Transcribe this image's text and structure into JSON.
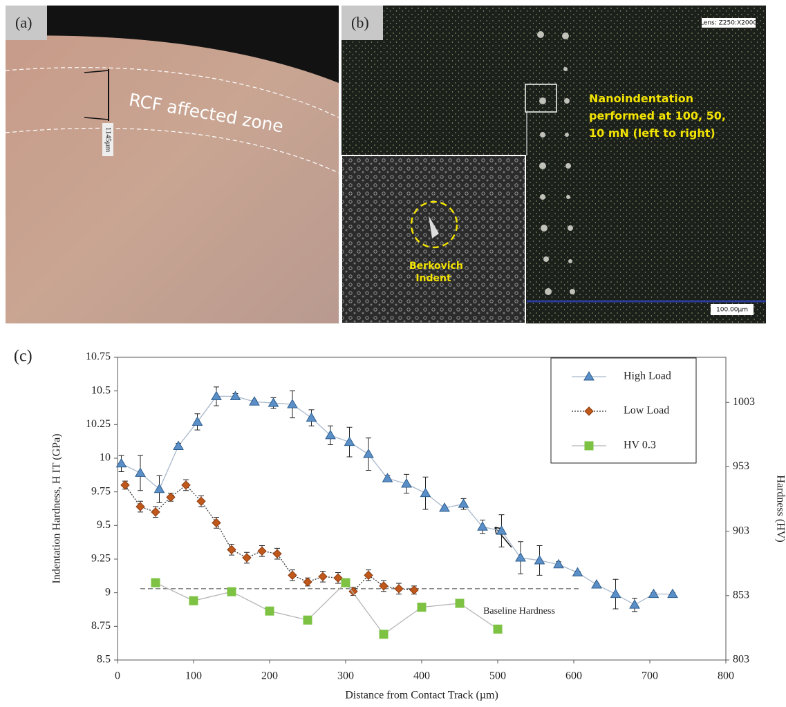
{
  "panels": {
    "a": {
      "label": "(a)",
      "annotation": "RCF affected zone",
      "scale_label": "1145µm"
    },
    "b": {
      "label": "(b)",
      "lens": "Lens: Z250:X2000",
      "annotation": "Nanoindentation performed at 100, 50, 10 mN (left to right)",
      "inset_label": "Berkovich Indent",
      "scale_bar": "100.00µm"
    },
    "c": {
      "label": "(c)"
    }
  },
  "chart_data": {
    "type": "line",
    "x_label": "Distance from Contact Track (µm)",
    "y_label": "Indentation Hardness, H IT (GPa)",
    "y2_label": "Hardness (HV)",
    "xlim": [
      0,
      800
    ],
    "xticks": [
      0,
      100,
      200,
      300,
      400,
      500,
      600,
      700,
      800
    ],
    "ylim": [
      8.5,
      10.75
    ],
    "yticks": [
      8.5,
      8.75,
      9,
      9.25,
      9.5,
      9.75,
      10,
      10.25,
      10.5,
      10.75
    ],
    "y2lim": [
      803,
      1038
    ],
    "y2ticks": [
      803,
      853,
      903,
      953,
      1003
    ],
    "legend": "top-right",
    "series": [
      {
        "name": "High Load",
        "color": "#5b8fc7",
        "edge": "#2e5e8e",
        "line_color": "#a9b8cc",
        "line_style": "solid",
        "marker": "triangle",
        "x": [
          5,
          30,
          55,
          80,
          105,
          130,
          155,
          180,
          205,
          230,
          255,
          280,
          305,
          330,
          355,
          380,
          405,
          430,
          455,
          480,
          505,
          530,
          555,
          580,
          605,
          630,
          655,
          680,
          705,
          730
        ],
        "values": [
          9.96,
          9.89,
          9.77,
          10.09,
          10.27,
          10.46,
          10.46,
          10.42,
          10.41,
          10.4,
          10.3,
          10.17,
          10.12,
          10.03,
          9.85,
          9.81,
          9.74,
          9.63,
          9.66,
          9.49,
          9.46,
          9.26,
          9.24,
          9.21,
          9.15,
          9.06,
          8.99,
          8.91,
          8.99,
          8.99
        ],
        "errors": [
          0.06,
          0.13,
          0.1,
          0.02,
          0.06,
          0.07,
          0.02,
          0.01,
          0.04,
          0.1,
          0.06,
          0.07,
          0.11,
          0.12,
          0.02,
          0.07,
          0.12,
          0.01,
          0.04,
          0.05,
          0.12,
          0.12,
          0.11,
          0.02,
          0.01,
          0.01,
          0.11,
          0.05,
          0.01,
          0.01
        ]
      },
      {
        "name": "Low Load",
        "color": "#c0581b",
        "edge": "#8a3a10",
        "line_color": "#333333",
        "line_style": "dotted",
        "marker": "diamond",
        "x": [
          10,
          30,
          50,
          70,
          90,
          110,
          130,
          150,
          170,
          190,
          210,
          230,
          250,
          270,
          290,
          310,
          330,
          350,
          370,
          390
        ],
        "values": [
          9.8,
          9.64,
          9.6,
          9.71,
          9.8,
          9.68,
          9.52,
          9.32,
          9.26,
          9.31,
          9.29,
          9.13,
          9.08,
          9.12,
          9.11,
          9.01,
          9.13,
          9.05,
          9.03,
          9.02
        ],
        "errors": [
          0.03,
          0.04,
          0.04,
          0.03,
          0.04,
          0.04,
          0.04,
          0.04,
          0.04,
          0.04,
          0.04,
          0.04,
          0.03,
          0.04,
          0.04,
          0.03,
          0.04,
          0.04,
          0.04,
          0.03
        ]
      },
      {
        "name": "HV 0.3",
        "color": "#7dc242",
        "edge": "#7dc242",
        "line_color": "#b5b5b5",
        "line_style": "solid",
        "marker": "square",
        "axis": "y2",
        "x": [
          50,
          100,
          150,
          200,
          250,
          300,
          350,
          400,
          450,
          500
        ],
        "values": [
          863,
          849,
          856,
          841,
          834,
          863,
          823,
          844,
          847,
          827
        ]
      }
    ],
    "annotations": [
      {
        "text": "Baseline Hardness",
        "value": 9.03,
        "x": [
          30,
          610
        ]
      }
    ]
  }
}
